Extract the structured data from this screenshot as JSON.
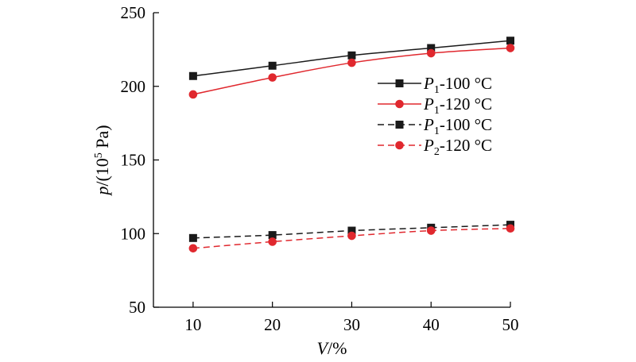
{
  "chart_data": {
    "type": "line",
    "xlabel": {
      "var": "V",
      "unit": "/%"
    },
    "ylabel": {
      "var": "p",
      "pre": "/(10",
      "sup": "5",
      "post": " Pa)"
    },
    "x": [
      10,
      20,
      30,
      40,
      50
    ],
    "xlim": [
      5,
      50
    ],
    "ylim": [
      50,
      250
    ],
    "xticks": [
      10,
      20,
      30,
      40,
      50
    ],
    "yticks": [
      50,
      100,
      150,
      200,
      250
    ],
    "legend_position": "right",
    "series": [
      {
        "name": "P1-100 °C",
        "name_var": "P",
        "name_sub": "1",
        "name_rest": "-100 °C",
        "values": [
          207,
          214,
          221,
          226,
          231
        ],
        "color": "#1a1a1a",
        "marker": "square",
        "dashed": false
      },
      {
        "name": "P1-120 °C",
        "name_var": "P",
        "name_sub": "1",
        "name_rest": "-120 °C",
        "values": [
          194.5,
          206,
          216,
          222.5,
          226
        ],
        "color": "#e0282e",
        "marker": "circle",
        "dashed": false
      },
      {
        "name": "P1-100 °C",
        "name_var": "P",
        "name_sub": "1",
        "name_rest": "-100 °C",
        "values": [
          97,
          99,
          102,
          104,
          106
        ],
        "color": "#1a1a1a",
        "marker": "square",
        "dashed": true
      },
      {
        "name": "P2-120 °C",
        "name_var": "P",
        "name_sub": "2",
        "name_rest": "-120 °C",
        "values": [
          90,
          94.5,
          98.5,
          102,
          103.5
        ],
        "color": "#e0282e",
        "marker": "circle",
        "dashed": true
      }
    ]
  }
}
